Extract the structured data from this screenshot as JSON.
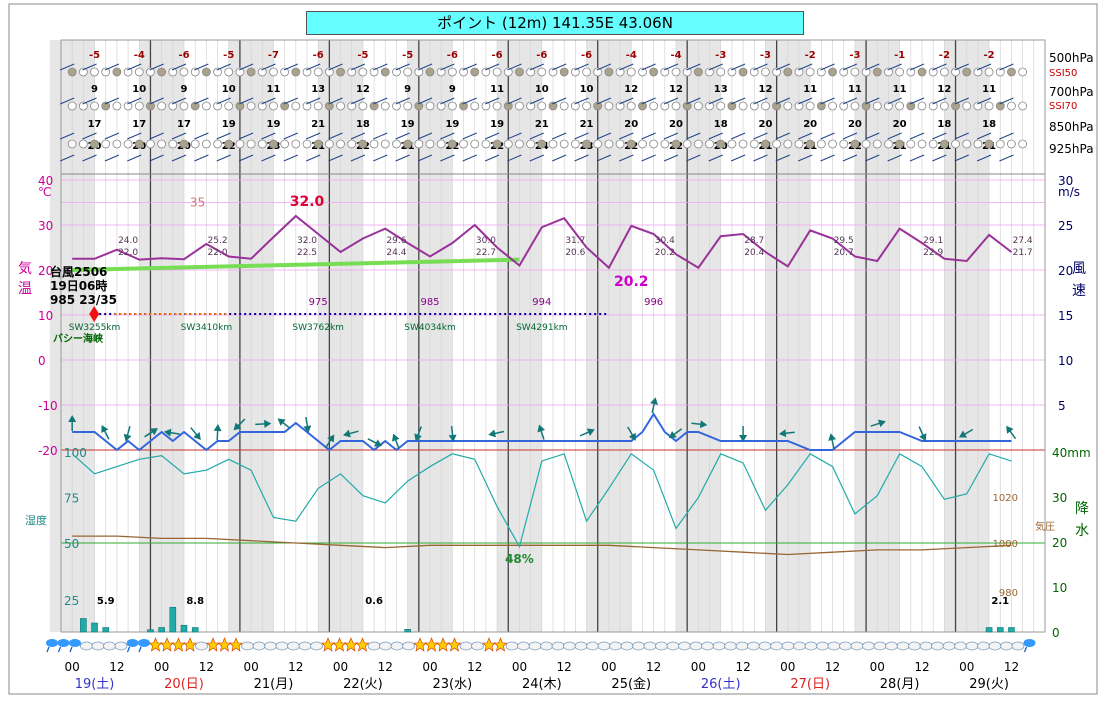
{
  "title": "ポイント (12m)  141.35E  43.06N",
  "upper_levels": {
    "labels": [
      "500hPa",
      "700hPa",
      "850hPa",
      "925hPa"
    ],
    "ssi_labels": [
      "SSI50",
      "SSI70"
    ],
    "temps": {
      "500": [
        "-5",
        "-4",
        "-6",
        "-5",
        "-7",
        "-6",
        "-5",
        "-5",
        "-6",
        "-6",
        "-6",
        "-6",
        "-4",
        "-4",
        "-3",
        "-3",
        "-2",
        "-3",
        "-1",
        "-2",
        "-2"
      ],
      "700": [
        "9",
        "10",
        "9",
        "10",
        "11",
        "13",
        "12",
        "9",
        "9",
        "11",
        "10",
        "10",
        "12",
        "12",
        "13",
        "12",
        "11",
        "11",
        "11",
        "12",
        "11"
      ],
      "850": [
        "17",
        "17",
        "17",
        "19",
        "19",
        "21",
        "18",
        "19",
        "19",
        "19",
        "21",
        "21",
        "20",
        "20",
        "18",
        "20",
        "20",
        "20",
        "20",
        "18",
        "18"
      ],
      "925": [
        "20",
        "20",
        "20",
        "22",
        "23",
        "21",
        "22",
        "21",
        "22",
        "22",
        "24",
        "23",
        "22",
        "22",
        "20",
        "21",
        "21",
        "22",
        "21",
        "21",
        "21"
      ]
    }
  },
  "chart_data": {
    "type": "line",
    "x_unit": "hour",
    "x_range": [
      0,
      255
    ],
    "days": [
      {
        "date": "19(土)",
        "color": "#3333cc"
      },
      {
        "date": "20(日)",
        "color": "#dd2222"
      },
      {
        "date": "21(月)",
        "color": "#000000"
      },
      {
        "date": "22(火)",
        "color": "#000000"
      },
      {
        "date": "23(水)",
        "color": "#000000"
      },
      {
        "date": "24(木)",
        "color": "#000000"
      },
      {
        "date": "25(金)",
        "color": "#000000"
      },
      {
        "date": "26(土)",
        "color": "#3333cc"
      },
      {
        "date": "27(日)",
        "color": "#dd2222"
      },
      {
        "date": "28(月)",
        "color": "#000000"
      },
      {
        "date": "29(火)",
        "color": "#000000"
      }
    ],
    "hour_ticks": [
      "00",
      "12"
    ],
    "left_axis": {
      "label": "気温",
      "unit": "℃",
      "ticks": [
        40,
        30,
        20,
        10,
        0,
        -10,
        -20
      ],
      "ylim": [
        -20,
        40
      ],
      "extra_tick": 35
    },
    "right_axis": {
      "label": "風速",
      "unit": "m/s",
      "ticks": [
        30,
        25,
        20,
        15,
        10,
        5
      ],
      "ylim": [
        0,
        30
      ]
    },
    "precip_axis": {
      "label": "降水",
      "unit": "mm",
      "ticks": [
        40,
        30,
        20,
        10,
        0
      ]
    },
    "humidity_axis": {
      "label": "湿度",
      "ticks": [
        100,
        75,
        50,
        25
      ]
    },
    "pressure_label": "気圧",
    "pressure_ticks": [
      {
        "value": 1020,
        "label": "1020"
      },
      {
        "value": 1000,
        "label": "1000"
      },
      {
        "value": 980,
        "label": "980"
      }
    ],
    "temperature": {
      "color": "#993399",
      "x": [
        0,
        6,
        12,
        18,
        24,
        30,
        36,
        42,
        48,
        54,
        60,
        66,
        72,
        78,
        84,
        90,
        96,
        102,
        108,
        114,
        120,
        126,
        132,
        138,
        144,
        150,
        156,
        162,
        168,
        174,
        180,
        186,
        192,
        198,
        204,
        210,
        216,
        222,
        228,
        234,
        240,
        246,
        252
      ],
      "y": [
        22.5,
        22.5,
        24.5,
        22.3,
        22.6,
        22.4,
        25.8,
        23.0,
        22.5,
        27.3,
        32.0,
        28.0,
        24.0,
        27.0,
        29.2,
        26.0,
        23.0,
        26.0,
        30.0,
        25.0,
        21.0,
        29.5,
        31.5,
        25.0,
        20.5,
        29.8,
        28.0,
        23.5,
        20.5,
        27.5,
        28.0,
        24.0,
        20.8,
        28.8,
        27.0,
        23.0,
        22.0,
        29.2,
        26.0,
        22.5,
        22.0,
        27.8,
        24.0
      ]
    },
    "max_labels": [
      "24.0",
      "25.2",
      "32.0",
      "29.6",
      "30.0",
      "31.7",
      "30.4",
      "28.7",
      "29.5",
      "29.1",
      "27.4"
    ],
    "min_labels": [
      "22.0",
      "22.0",
      "22.5",
      "24.4",
      "22.7",
      "20.6",
      "20.2",
      "20.4",
      "20.7",
      "22.9",
      "21.7"
    ],
    "highlight_max": "32.0",
    "highlight_min": "20.2",
    "typhoon_track": {
      "color": "#77dd55",
      "x": [
        0,
        120
      ],
      "y": [
        20.0,
        22.3
      ],
      "name": "台風2506",
      "time": "19日06時",
      "info": "985 23/35",
      "pressures": [
        "975",
        "985",
        "994",
        "996"
      ],
      "distances": [
        "SW3255km",
        "SW3410km",
        "SW3762km",
        "SW4034km",
        "SW4291km"
      ],
      "location": "バシー海峡"
    },
    "wind_speed": {
      "color": "#3366dd",
      "x": [
        0,
        6,
        9,
        12,
        15,
        18,
        21,
        24,
        27,
        30,
        33,
        36,
        39,
        42,
        45,
        48,
        51,
        54,
        57,
        60,
        63,
        66,
        69,
        72,
        75,
        78,
        81,
        84,
        87,
        90,
        93,
        96,
        102,
        108,
        114,
        120,
        126,
        132,
        138,
        144,
        150,
        153,
        156,
        159,
        162,
        165,
        168,
        174,
        180,
        186,
        192,
        198,
        204,
        210,
        216,
        222,
        228,
        234,
        240,
        246,
        252
      ],
      "y": [
        2.0,
        2.0,
        1.0,
        0.0,
        1.0,
        0.0,
        1.0,
        2.0,
        1.0,
        2.0,
        1.0,
        0.0,
        1.0,
        1.0,
        2.0,
        2.0,
        2.0,
        2.0,
        2.0,
        3.0,
        2.0,
        1.0,
        0.0,
        1.0,
        1.0,
        1.0,
        0.0,
        1.0,
        0.0,
        1.0,
        1.0,
        1.0,
        1.0,
        1.0,
        1.0,
        1.0,
        1.0,
        1.0,
        1.0,
        1.0,
        1.0,
        2.0,
        4.0,
        2.0,
        1.0,
        2.0,
        2.0,
        1.0,
        1.0,
        1.0,
        1.0,
        0.0,
        0.0,
        2.0,
        2.0,
        2.0,
        1.0,
        1.0,
        1.0,
        1.0,
        1.0
      ]
    },
    "humidity": {
      "color": "#22aaaa",
      "x": [
        0,
        6,
        12,
        18,
        24,
        30,
        36,
        42,
        48,
        54,
        60,
        66,
        72,
        78,
        84,
        90,
        96,
        102,
        108,
        114,
        120,
        126,
        132,
        138,
        144,
        150,
        156,
        162,
        168,
        174,
        180,
        186,
        192,
        198,
        204,
        210,
        216,
        222,
        228,
        234,
        240,
        246,
        252
      ],
      "y": [
        99,
        88,
        92,
        96,
        98,
        88,
        90,
        96,
        90,
        64,
        62,
        80,
        88,
        76,
        72,
        84,
        92,
        99,
        96,
        70,
        48,
        95,
        99,
        62,
        80,
        99,
        90,
        58,
        75,
        99,
        94,
        68,
        82,
        99,
        92,
        66,
        76,
        99,
        92,
        74,
        77,
        99,
        95
      ]
    },
    "humidity_min_label": "48%",
    "pressure": {
      "color": "#996633",
      "note": "hPa",
      "x": [
        0,
        12,
        24,
        36,
        48,
        60,
        72,
        84,
        96,
        108,
        120,
        132,
        144,
        156,
        168,
        180,
        192,
        204,
        216,
        228,
        240,
        252
      ],
      "y": [
        1003,
        1003,
        1002,
        1002,
        1001,
        1000,
        999,
        998,
        999,
        999,
        999,
        999,
        999,
        998,
        997,
        996,
        995,
        996,
        997,
        997,
        998,
        999
      ]
    },
    "precipitation": {
      "color": "#22aaaa",
      "bars": [
        {
          "hour": 3,
          "value": 3.0
        },
        {
          "hour": 6,
          "value": 2.0
        },
        {
          "hour": 9,
          "value": 1.0
        },
        {
          "hour": 21,
          "value": 0.5
        },
        {
          "hour": 24,
          "value": 1.0
        },
        {
          "hour": 27,
          "value": 5.5
        },
        {
          "hour": 30,
          "value": 1.5
        },
        {
          "hour": 33,
          "value": 1.0
        },
        {
          "hour": 90,
          "value": 0.6
        },
        {
          "hour": 246,
          "value": 1.0
        },
        {
          "hour": 249,
          "value": 1.0
        },
        {
          "hour": 252,
          "value": 1.0
        }
      ],
      "daily_totals": [
        {
          "hour": 9,
          "label": "5.9"
        },
        {
          "hour": 33,
          "label": "8.8"
        },
        {
          "hour": 81,
          "label": "0.6"
        },
        {
          "hour": 249,
          "label": "2.1"
        }
      ]
    },
    "weather_icons": [
      "rain",
      "rain",
      "rain",
      "cloud",
      "cloud",
      "cloud",
      "cloud",
      "rain",
      "rain",
      "sun",
      "sun",
      "sun",
      "sun",
      "cloud",
      "sun",
      "sun",
      "sun",
      "cloud",
      "cloud",
      "cloud",
      "cloud",
      "cloud",
      "cloud",
      "cloud",
      "sun",
      "sun",
      "sun",
      "sun",
      "cloud",
      "cloud",
      "cloud",
      "cloud",
      "sun",
      "sun",
      "sun",
      "sun",
      "cloud",
      "cloud",
      "sun",
      "sun",
      "cloud",
      "cloud",
      "cloud",
      "cloud",
      "cloud",
      "cloud",
      "cloud",
      "cloud",
      "cloud",
      "cloud",
      "cloud",
      "cloud",
      "cloud",
      "cloud",
      "cloud",
      "cloud",
      "cloud",
      "cloud",
      "cloud",
      "cloud",
      "cloud",
      "cloud",
      "cloud",
      "cloud",
      "cloud",
      "cloud",
      "cloud",
      "cloud",
      "cloud",
      "cloud",
      "cloud",
      "cloud",
      "cloud",
      "cloud",
      "cloud",
      "cloud",
      "cloud",
      "cloud",
      "cloud",
      "cloud",
      "cloud",
      "cloud",
      "cloud",
      "cloud",
      "cloud",
      "rain"
    ]
  }
}
